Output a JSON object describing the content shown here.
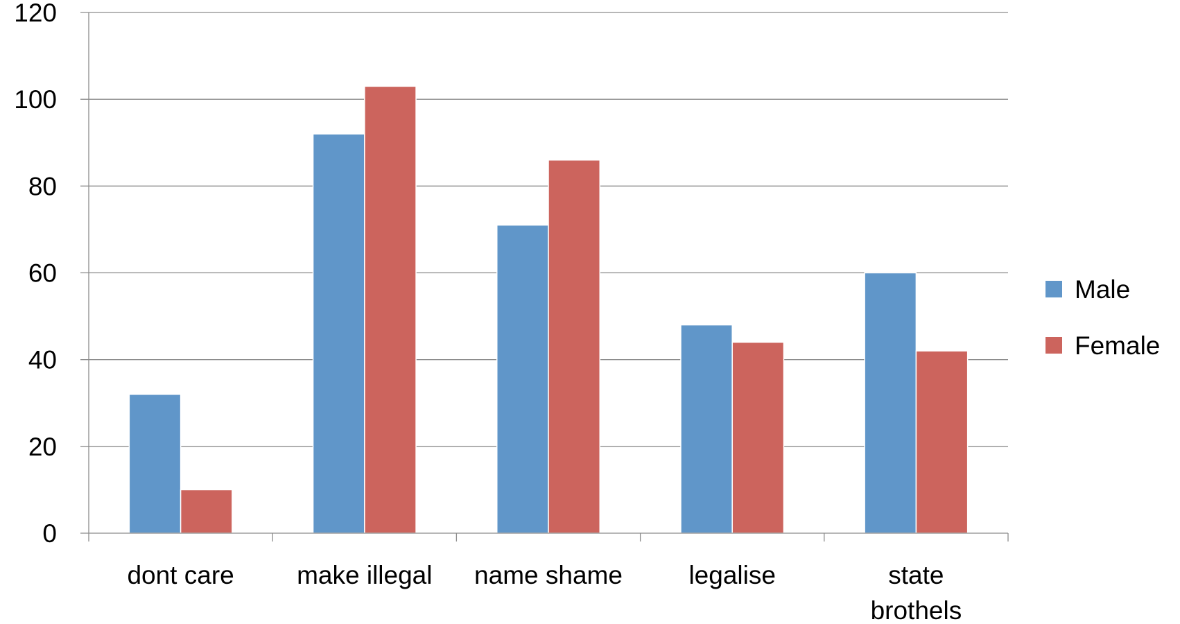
{
  "chart_data": {
    "type": "bar",
    "categories": [
      [
        "dont care"
      ],
      [
        "make illegal"
      ],
      [
        "name shame"
      ],
      [
        "legalise"
      ],
      [
        "state",
        "brothels"
      ]
    ],
    "series": [
      {
        "name": "Male",
        "values": [
          32,
          92,
          71,
          48,
          60
        ],
        "color": "#6096c9"
      },
      {
        "name": "Female",
        "values": [
          10,
          103,
          86,
          44,
          42
        ],
        "color": "#cc645d"
      }
    ],
    "ylim": [
      0,
      120
    ],
    "yticks": [
      0,
      20,
      40,
      60,
      80,
      100,
      120
    ],
    "grid": true,
    "legend": "right"
  }
}
